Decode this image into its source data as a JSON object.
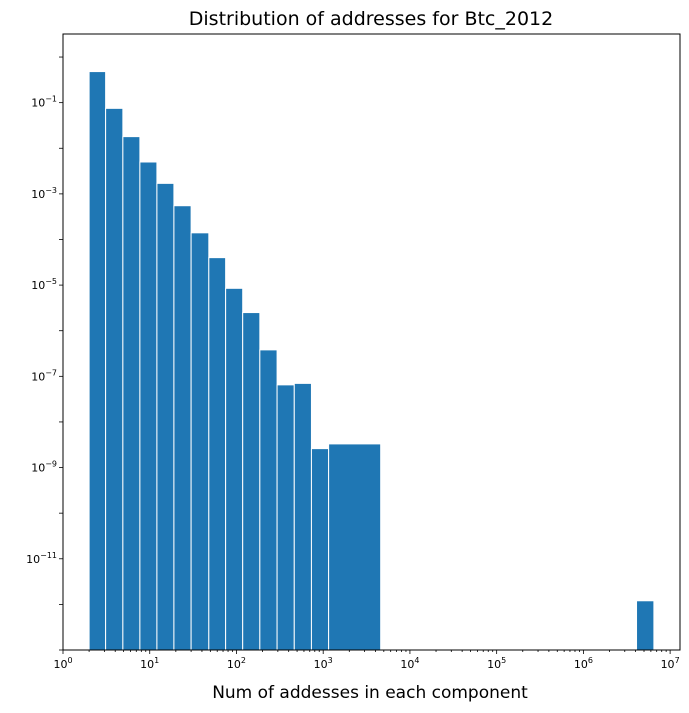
{
  "chart_data": {
    "type": "bar",
    "title": "Distribution of addresses for Btc_2012",
    "xlabel": "Num of addesses in each component",
    "ylabel": "",
    "xscale": "log",
    "yscale": "log",
    "xlim": [
      1,
      13000000
    ],
    "ylim": [
      1e-13,
      3.2
    ],
    "grid": false,
    "legend": "none",
    "bar_color": "#1f77b4",
    "bar_edge_color": "#ffffff",
    "x_ticks": [
      {
        "base": "10",
        "exp": "0",
        "value": 1
      },
      {
        "base": "10",
        "exp": "1",
        "value": 10
      },
      {
        "base": "10",
        "exp": "2",
        "value": 100
      },
      {
        "base": "10",
        "exp": "3",
        "value": 1000
      },
      {
        "base": "10",
        "exp": "4",
        "value": 10000
      },
      {
        "base": "10",
        "exp": "5",
        "value": 100000
      },
      {
        "base": "10",
        "exp": "6",
        "value": 1000000
      },
      {
        "base": "10",
        "exp": "7",
        "value": 10000000
      }
    ],
    "y_ticks": [
      {
        "base": "10",
        "exp": "−1",
        "value": 0.1
      },
      {
        "base": "10",
        "exp": "−3",
        "value": 0.001
      },
      {
        "base": "10",
        "exp": "−5",
        "value": 1e-05
      },
      {
        "base": "10",
        "exp": "−7",
        "value": 1e-07
      },
      {
        "base": "10",
        "exp": "−9",
        "value": 1e-09
      },
      {
        "base": "10",
        "exp": "−11",
        "value": 1e-11
      }
    ],
    "bins": [
      {
        "x0": 2,
        "x1": 3.1,
        "value": 0.48
      },
      {
        "x0": 3.1,
        "x1": 4.9,
        "value": 0.075
      },
      {
        "x0": 4.9,
        "x1": 7.7,
        "value": 0.018
      },
      {
        "x0": 7.7,
        "x1": 12.1,
        "value": 0.005
      },
      {
        "x0": 12.1,
        "x1": 19,
        "value": 0.0017
      },
      {
        "x0": 19,
        "x1": 30,
        "value": 0.00055
      },
      {
        "x0": 30,
        "x1": 48,
        "value": 0.00014
      },
      {
        "x0": 48,
        "x1": 75,
        "value": 4e-05
      },
      {
        "x0": 75,
        "x1": 118,
        "value": 8.5e-06
      },
      {
        "x0": 118,
        "x1": 186,
        "value": 2.5e-06
      },
      {
        "x0": 186,
        "x1": 294,
        "value": 3.8e-07
      },
      {
        "x0": 294,
        "x1": 464,
        "value": 6.5e-08
      },
      {
        "x0": 464,
        "x1": 732,
        "value": 7e-08
      },
      {
        "x0": 732,
        "x1": 1155,
        "value": 2.6e-09
      },
      {
        "x0": 1155,
        "x1": 4600,
        "value": 3.3e-09
      },
      {
        "x0": 4100000,
        "x1": 6500000,
        "value": 1.2e-12
      }
    ]
  }
}
